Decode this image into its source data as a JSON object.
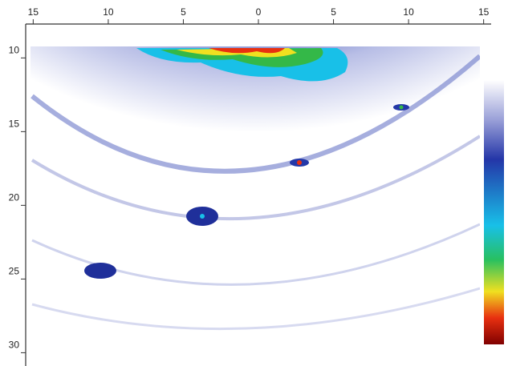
{
  "chart_data": {
    "type": "image",
    "xlim": [
      -15.5,
      15.5
    ],
    "xticks": [
      {
        "value": -15,
        "label": "15"
      },
      {
        "value": -10,
        "label": "10"
      },
      {
        "value": -5,
        "label": "5"
      },
      0,
      5,
      10,
      15
    ],
    "ylim": [
      7.7,
      30.9
    ],
    "yticks": [
      10,
      15,
      20,
      25,
      30
    ],
    "y_inverted": true,
    "colorbar": true
  }
}
